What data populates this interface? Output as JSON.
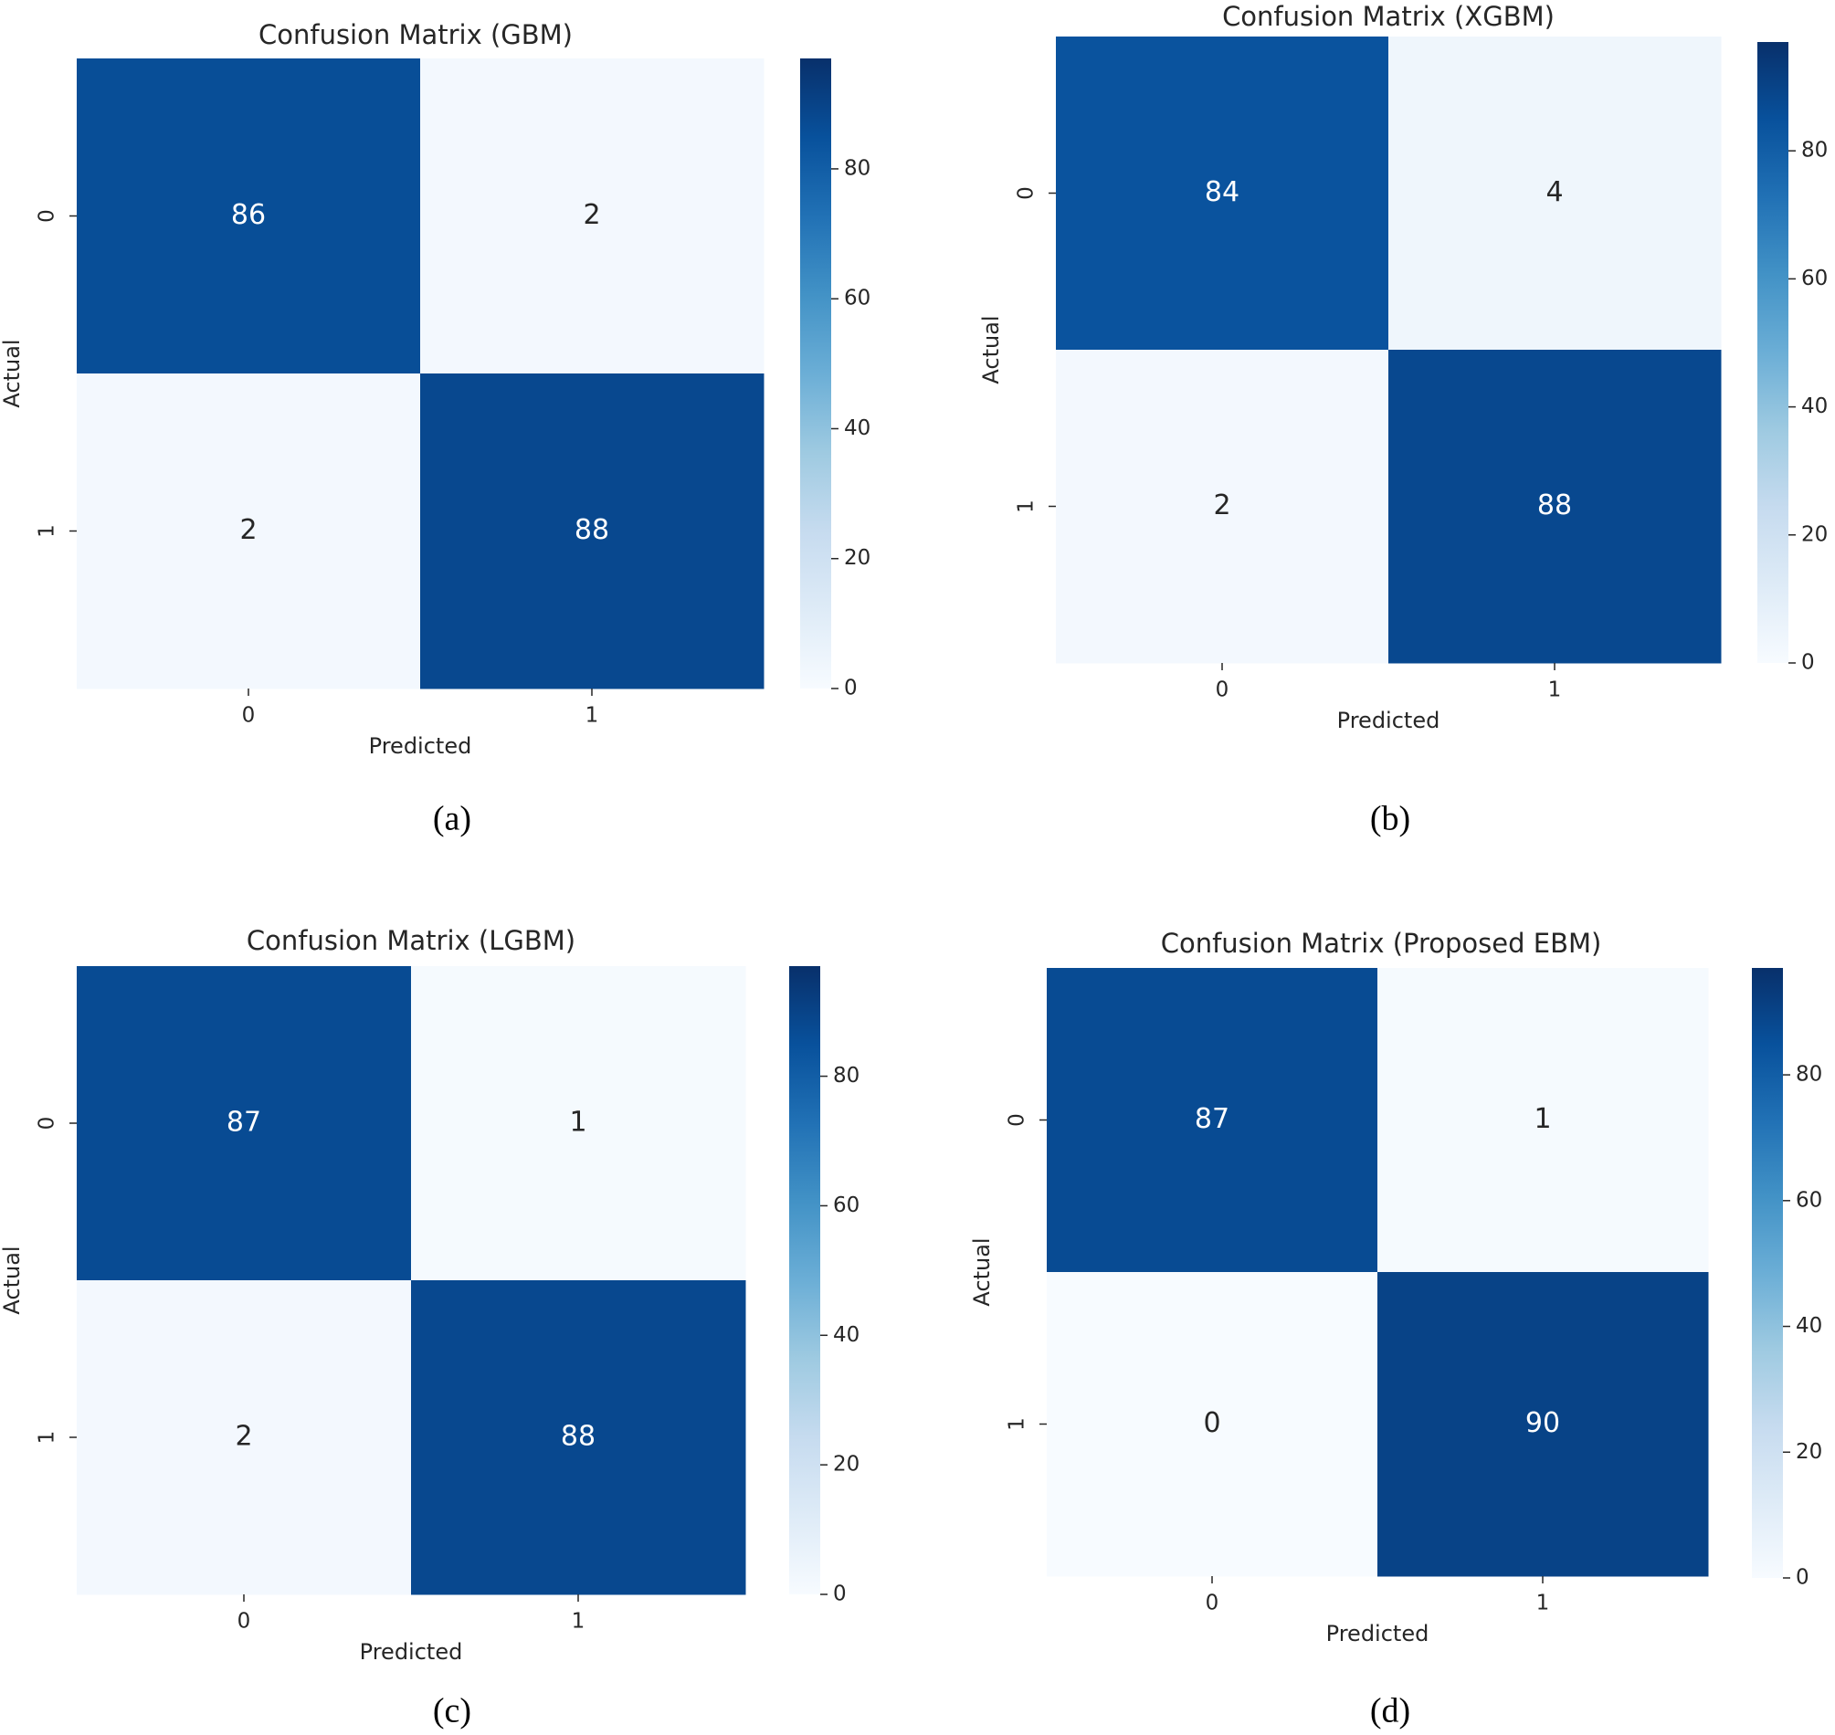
{
  "colors": {
    "scale": [
      "#f7fbff",
      "#deebf7",
      "#c6dbef",
      "#9ecae1",
      "#6baed6",
      "#4292c6",
      "#2171b5",
      "#08519c",
      "#08306b"
    ],
    "text_dark": "#262626",
    "text_light": "#ffffff"
  },
  "chart_data": [
    {
      "type": "heatmap",
      "panel": "(a)",
      "title": "Confusion Matrix (GBM)",
      "xlabel": "Predicted",
      "ylabel": "Actual",
      "x_ticks": [
        "0",
        "1"
      ],
      "y_ticks": [
        "0",
        "1"
      ],
      "values": [
        [
          86,
          2
        ],
        [
          2,
          88
        ]
      ],
      "colorbar": {
        "min": 0,
        "max": 97,
        "ticks": [
          0,
          20,
          40,
          60,
          80
        ]
      }
    },
    {
      "type": "heatmap",
      "panel": "(b)",
      "title": "Confusion Matrix (XGBM)",
      "xlabel": "Predicted",
      "ylabel": "Actual",
      "x_ticks": [
        "0",
        "1"
      ],
      "y_ticks": [
        "0",
        "1"
      ],
      "values": [
        [
          84,
          4
        ],
        [
          2,
          88
        ]
      ],
      "colorbar": {
        "min": 0,
        "max": 97,
        "ticks": [
          0,
          20,
          40,
          60,
          80
        ]
      }
    },
    {
      "type": "heatmap",
      "panel": "(c)",
      "title": "Confusion Matrix (LGBM)",
      "xlabel": "Predicted",
      "ylabel": "Actual",
      "x_ticks": [
        "0",
        "1"
      ],
      "y_ticks": [
        "0",
        "1"
      ],
      "values": [
        [
          87,
          1
        ],
        [
          2,
          88
        ]
      ],
      "colorbar": {
        "min": 0,
        "max": 97,
        "ticks": [
          0,
          20,
          40,
          60,
          80
        ]
      }
    },
    {
      "type": "heatmap",
      "panel": "(d)",
      "title": "Confusion Matrix (Proposed EBM)",
      "xlabel": "Predicted",
      "ylabel": "Actual",
      "x_ticks": [
        "0",
        "1"
      ],
      "y_ticks": [
        "0",
        "1"
      ],
      "values": [
        [
          87,
          1
        ],
        [
          0,
          90
        ]
      ],
      "colorbar": {
        "min": 0,
        "max": 97,
        "ticks": [
          0,
          20,
          40,
          60,
          80
        ]
      }
    }
  ]
}
